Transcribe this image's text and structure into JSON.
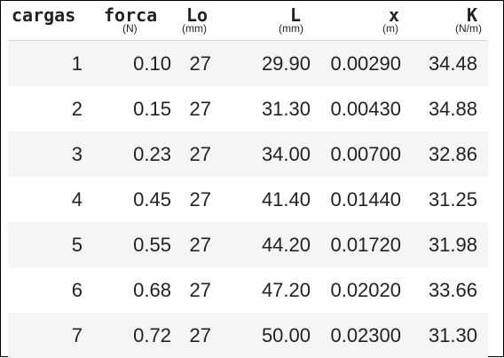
{
  "columns": [
    {
      "name": "cargas",
      "unit": ""
    },
    {
      "name": "forca",
      "unit": "(N)"
    },
    {
      "name": "Lo",
      "unit": "(mm)"
    },
    {
      "name": "L",
      "unit": "(mm)"
    },
    {
      "name": "x",
      "unit": "(m)"
    },
    {
      "name": "K",
      "unit": "(N/m)"
    }
  ],
  "rows": [
    [
      "1",
      "0.10",
      "27",
      "29.90",
      "0.00290",
      "34.48"
    ],
    [
      "2",
      "0.15",
      "27",
      "31.30",
      "0.00430",
      "34.88"
    ],
    [
      "3",
      "0.23",
      "27",
      "34.00",
      "0.00700",
      "32.86"
    ],
    [
      "4",
      "0.45",
      "27",
      "41.40",
      "0.01440",
      "31.25"
    ],
    [
      "5",
      "0.55",
      "27",
      "44.20",
      "0.01720",
      "31.98"
    ],
    [
      "6",
      "0.68",
      "27",
      "47.20",
      "0.02020",
      "33.66"
    ],
    [
      "7",
      "0.72",
      "27",
      "50.00",
      "0.02300",
      "31.30"
    ]
  ]
}
